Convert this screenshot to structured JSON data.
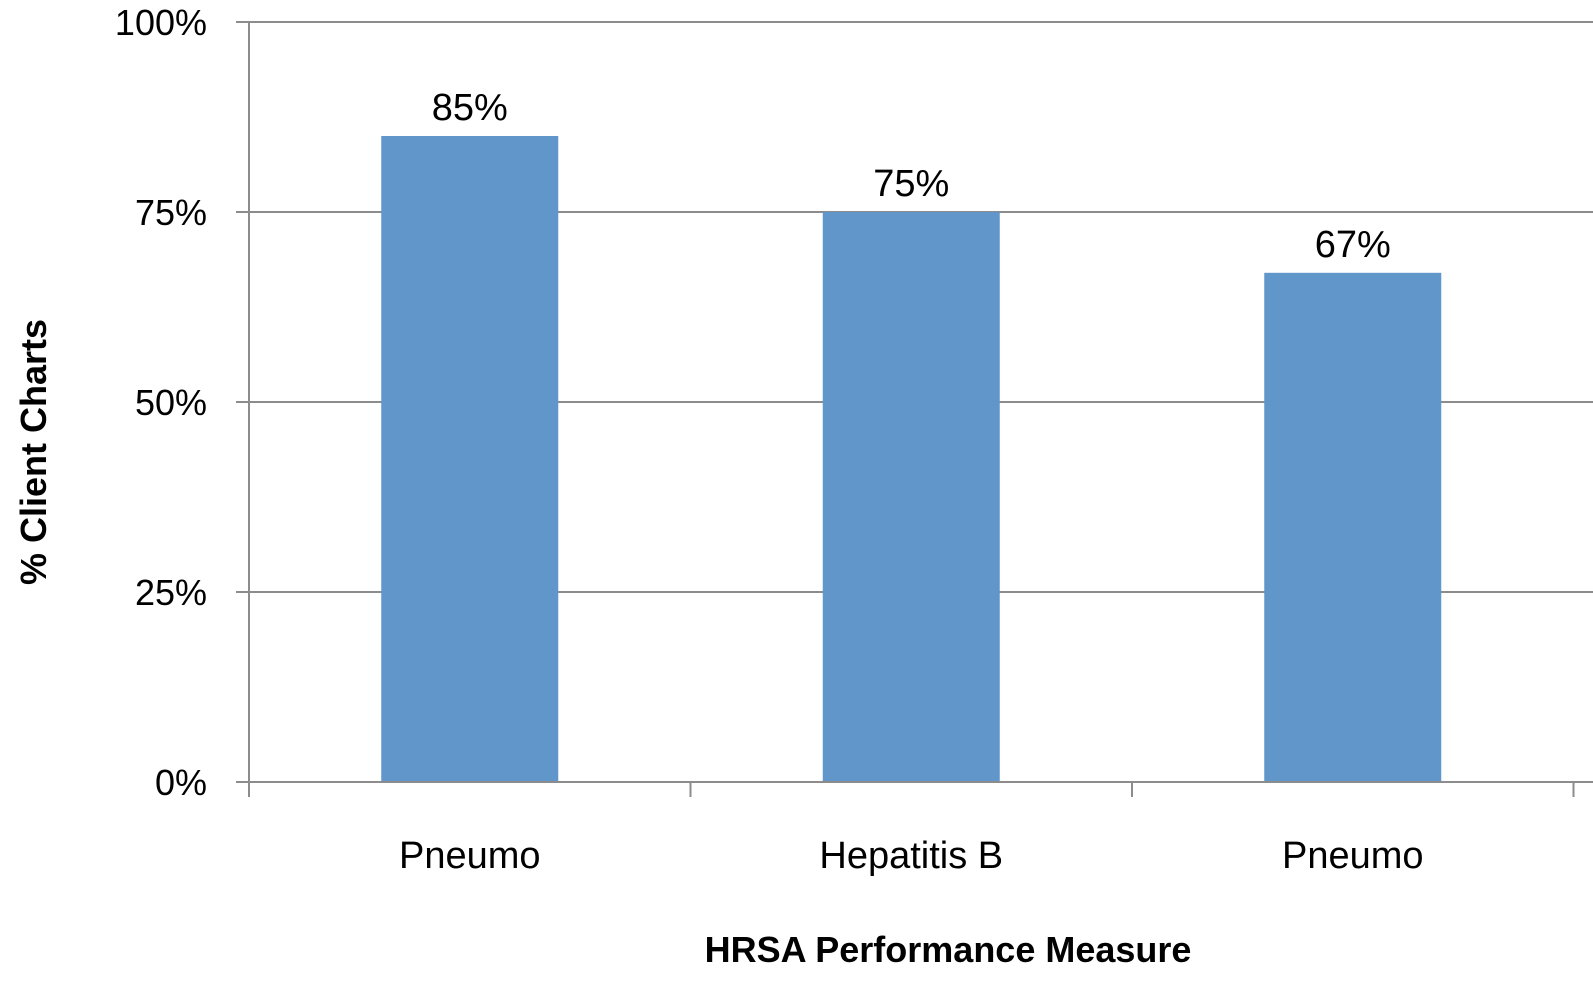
{
  "chart_data": {
    "type": "bar",
    "categories": [
      "Pneumo",
      "Hepatitis B",
      "Pneumo"
    ],
    "values": [
      85,
      75,
      67
    ],
    "data_labels": [
      "85%",
      "75%",
      "67%"
    ],
    "xlabel": "HRSA Performance Measure",
    "ylabel": "% Client Charts",
    "ylim": [
      0,
      100
    ],
    "yticks": [
      0,
      25,
      50,
      75,
      100
    ],
    "ytick_labels": [
      "0%",
      "25%",
      "50%",
      "75%",
      "100%"
    ],
    "grid": true,
    "legend": "none",
    "bar_color": "#6096C9"
  }
}
